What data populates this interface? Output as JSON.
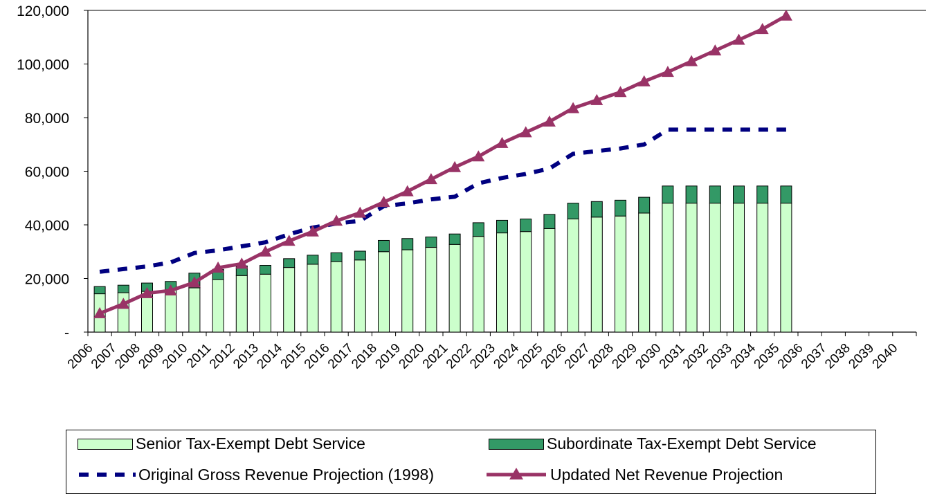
{
  "chart_data": {
    "type": "bar",
    "categories": [
      "2006",
      "2007",
      "2008",
      "2009",
      "2010",
      "2011",
      "2012",
      "2013",
      "2014",
      "2015",
      "2016",
      "2017",
      "2018",
      "2019",
      "2020",
      "2021",
      "2022",
      "2023",
      "2024",
      "2025",
      "2026",
      "2027",
      "2028",
      "2029",
      "2030",
      "2031",
      "2032",
      "2033",
      "2034",
      "2035",
      "2036",
      "2037",
      "2038",
      "2039",
      "2040"
    ],
    "ylim": [
      0,
      120000
    ],
    "yticks": [
      {
        "value": 0,
        "label": "-"
      },
      {
        "value": 20000,
        "label": "20,000"
      },
      {
        "value": 40000,
        "label": "40,000"
      },
      {
        "value": 60000,
        "label": "60,000"
      },
      {
        "value": 80000,
        "label": "80,000"
      },
      {
        "value": 100000,
        "label": "100,000"
      },
      {
        "value": 120000,
        "label": "120,000"
      }
    ],
    "grid": false,
    "legend_position": "bottom",
    "series": [
      {
        "name": "Senior Tax-Exempt Debt Service",
        "type": "stacked-bar",
        "color": "#ccffcc",
        "values": [
          14300,
          14700,
          15200,
          15800,
          16500,
          19600,
          21100,
          21600,
          24100,
          25300,
          26300,
          26900,
          30000,
          30700,
          31600,
          32700,
          35700,
          37000,
          37500,
          38600,
          42200,
          42900,
          43300,
          44400,
          48100,
          48100,
          48100,
          48100,
          48100,
          48100,
          null,
          null,
          null,
          null,
          null
        ]
      },
      {
        "name": "Subordinate Tax-Exempt Debt Service",
        "type": "stacked-bar",
        "color": "#339966",
        "values": [
          2700,
          2800,
          3100,
          3100,
          5500,
          3800,
          3600,
          3300,
          3300,
          3400,
          3300,
          3300,
          4200,
          4200,
          3900,
          3900,
          5100,
          4700,
          4700,
          5300,
          5900,
          5800,
          5900,
          5900,
          6400,
          6400,
          6400,
          6400,
          6400,
          6400,
          null,
          null,
          null,
          null,
          null
        ]
      },
      {
        "name": "Original Gross Revenue Projection (1998)",
        "type": "dashed-line",
        "color": "#000080",
        "values": [
          22500,
          23500,
          24500,
          26000,
          29500,
          30500,
          32000,
          33500,
          36500,
          39000,
          40500,
          41500,
          47000,
          48000,
          49500,
          50500,
          55500,
          57500,
          59000,
          61000,
          66500,
          67500,
          68500,
          70000,
          75500,
          75500,
          75500,
          75500,
          75500,
          75500,
          null,
          null,
          null,
          null,
          null
        ]
      },
      {
        "name": "Updated Net Revenue Projection",
        "type": "line-triangle",
        "color": "#993366",
        "values": [
          7000,
          10500,
          14500,
          15500,
          18500,
          24000,
          25500,
          30000,
          34000,
          37500,
          41500,
          44500,
          48500,
          52500,
          57000,
          61500,
          65500,
          70500,
          74500,
          78500,
          83500,
          86500,
          89500,
          93500,
          97000,
          101000,
          105000,
          109000,
          113000,
          118000,
          null,
          null,
          null,
          null,
          null
        ]
      }
    ]
  }
}
